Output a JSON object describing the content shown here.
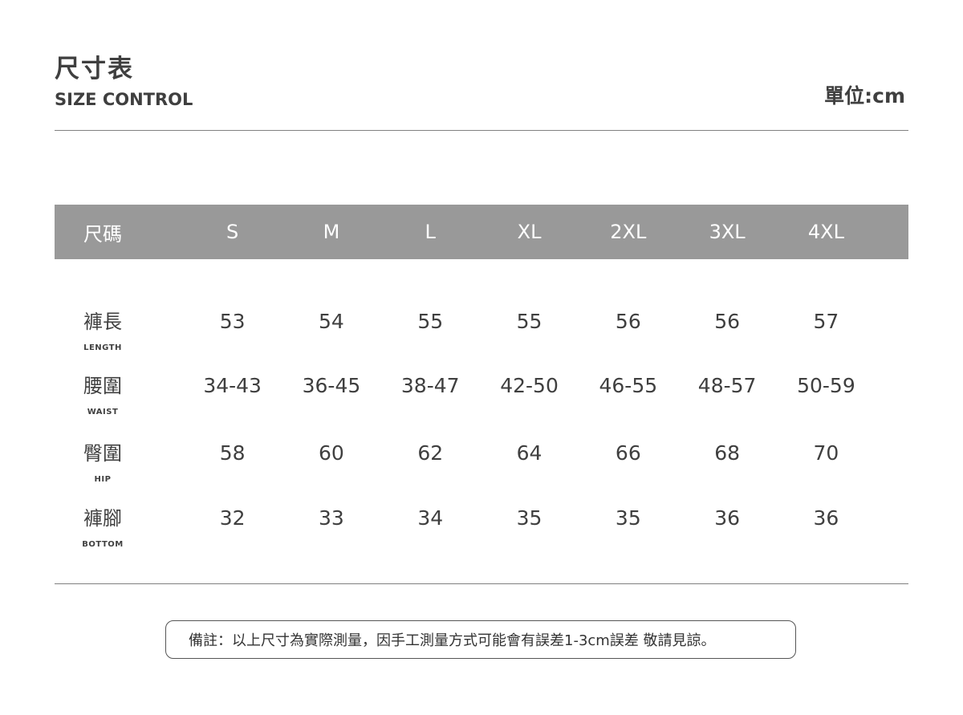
{
  "header": {
    "title": "尺寸表",
    "subtitle": "SIZE CONTROL",
    "unit": "單位:cm"
  },
  "table": {
    "header_label": "尺碼",
    "sizes": [
      "S",
      "M",
      "L",
      "XL",
      "2XL",
      "3XL",
      "4XL"
    ],
    "rows": [
      {
        "label": "褲長",
        "sublabel": "LENGTH",
        "values": [
          "53",
          "54",
          "55",
          "55",
          "56",
          "56",
          "57"
        ]
      },
      {
        "label": "腰圍",
        "sublabel": "WAIST",
        "values": [
          "34-43",
          "36-45",
          "38-47",
          "42-50",
          "46-55",
          "48-57",
          "50-59"
        ]
      },
      {
        "label": "臀圍",
        "sublabel": "HIP",
        "values": [
          "58",
          "60",
          "62",
          "64",
          "66",
          "68",
          "70"
        ]
      },
      {
        "label": "褲腳",
        "sublabel": "BOTTOM",
        "values": [
          "32",
          "33",
          "34",
          "35",
          "35",
          "36",
          "36"
        ]
      }
    ]
  },
  "note": "備註：以上尺寸為實際測量，因手工測量方式可能會有誤差1-3cm誤差 敬請見諒。",
  "colors": {
    "header_bg": "#999999",
    "text": "#3f3f3f"
  }
}
